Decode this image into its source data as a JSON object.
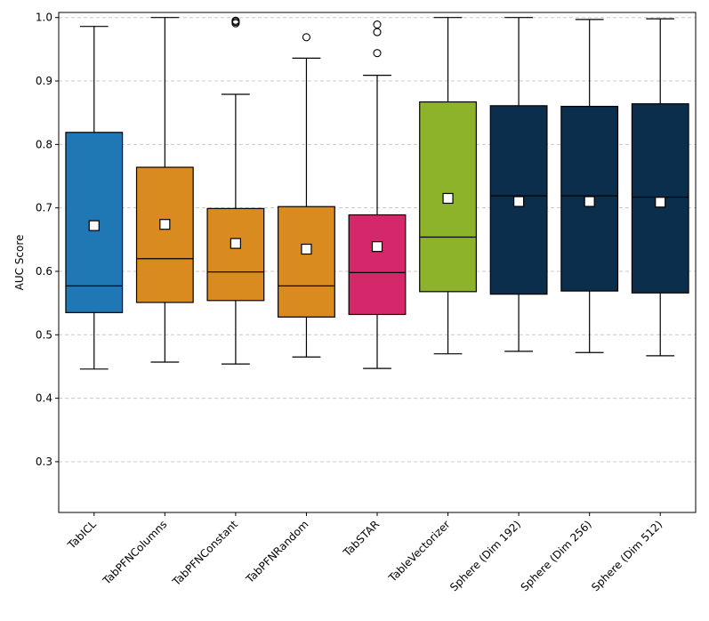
{
  "chart_data": {
    "type": "box",
    "title": "",
    "xlabel": "",
    "ylabel": "AUC Score",
    "ylim": [
      0.22,
      1.008
    ],
    "yticks": [
      "0.3",
      "0.4",
      "0.5",
      "0.6",
      "0.7",
      "0.8",
      "0.9",
      "1.0"
    ],
    "ytick_values": [
      0.3,
      0.4,
      0.5,
      0.6,
      0.7,
      0.8,
      0.9,
      1.0
    ],
    "grid": "horizontal dashed",
    "mean_marker": "white square",
    "categories": [
      "TabICL",
      "TabPFNColumns",
      "TabPFNConstant",
      "TabPFNRandom",
      "TabSTAR",
      "TableVectorizer",
      "Sphere (Dim 192)",
      "Sphere (Dim 256)",
      "Sphere (Dim 512)"
    ],
    "boxes": [
      {
        "name": "TabICL",
        "color": "#1f77b4",
        "whisker_low": 0.446,
        "q1": 0.535,
        "median": 0.577,
        "q3": 0.819,
        "whisker_high": 0.986,
        "mean": 0.672,
        "outliers": []
      },
      {
        "name": "TabPFNColumns",
        "color": "#d98b1f",
        "whisker_low": 0.457,
        "q1": 0.551,
        "median": 0.62,
        "q3": 0.764,
        "whisker_high": 1.0,
        "mean": 0.674,
        "outliers": []
      },
      {
        "name": "TabPFNConstant",
        "color": "#d98b1f",
        "whisker_low": 0.454,
        "q1": 0.554,
        "median": 0.599,
        "q3": 0.699,
        "whisker_high": 0.879,
        "mean": 0.644,
        "outliers": [
          0.991,
          0.993,
          0.995
        ]
      },
      {
        "name": "TabPFNRandom",
        "color": "#d98b1f",
        "whisker_low": 0.465,
        "q1": 0.528,
        "median": 0.577,
        "q3": 0.702,
        "whisker_high": 0.936,
        "mean": 0.635,
        "outliers": [
          0.969
        ]
      },
      {
        "name": "TabSTAR",
        "color": "#d4286a",
        "whisker_low": 0.447,
        "q1": 0.532,
        "median": 0.598,
        "q3": 0.689,
        "whisker_high": 0.909,
        "mean": 0.639,
        "outliers": [
          0.944,
          0.977,
          0.989
        ]
      },
      {
        "name": "TableVectorizer",
        "color": "#8db32a",
        "whisker_low": 0.47,
        "q1": 0.568,
        "median": 0.654,
        "q3": 0.867,
        "whisker_high": 1.0,
        "mean": 0.715,
        "outliers": []
      },
      {
        "name": "Sphere (Dim 192)",
        "color": "#0b2e4c",
        "whisker_low": 0.474,
        "q1": 0.564,
        "median": 0.719,
        "q3": 0.861,
        "whisker_high": 1.0,
        "mean": 0.71,
        "outliers": []
      },
      {
        "name": "Sphere (Dim 256)",
        "color": "#0b2e4c",
        "whisker_low": 0.472,
        "q1": 0.569,
        "median": 0.719,
        "q3": 0.86,
        "whisker_high": 0.997,
        "mean": 0.71,
        "outliers": []
      },
      {
        "name": "Sphere (Dim 512)",
        "color": "#0b2e4c",
        "whisker_low": 0.467,
        "q1": 0.566,
        "median": 0.717,
        "q3": 0.864,
        "whisker_high": 0.998,
        "mean": 0.709,
        "outliers": []
      }
    ]
  }
}
